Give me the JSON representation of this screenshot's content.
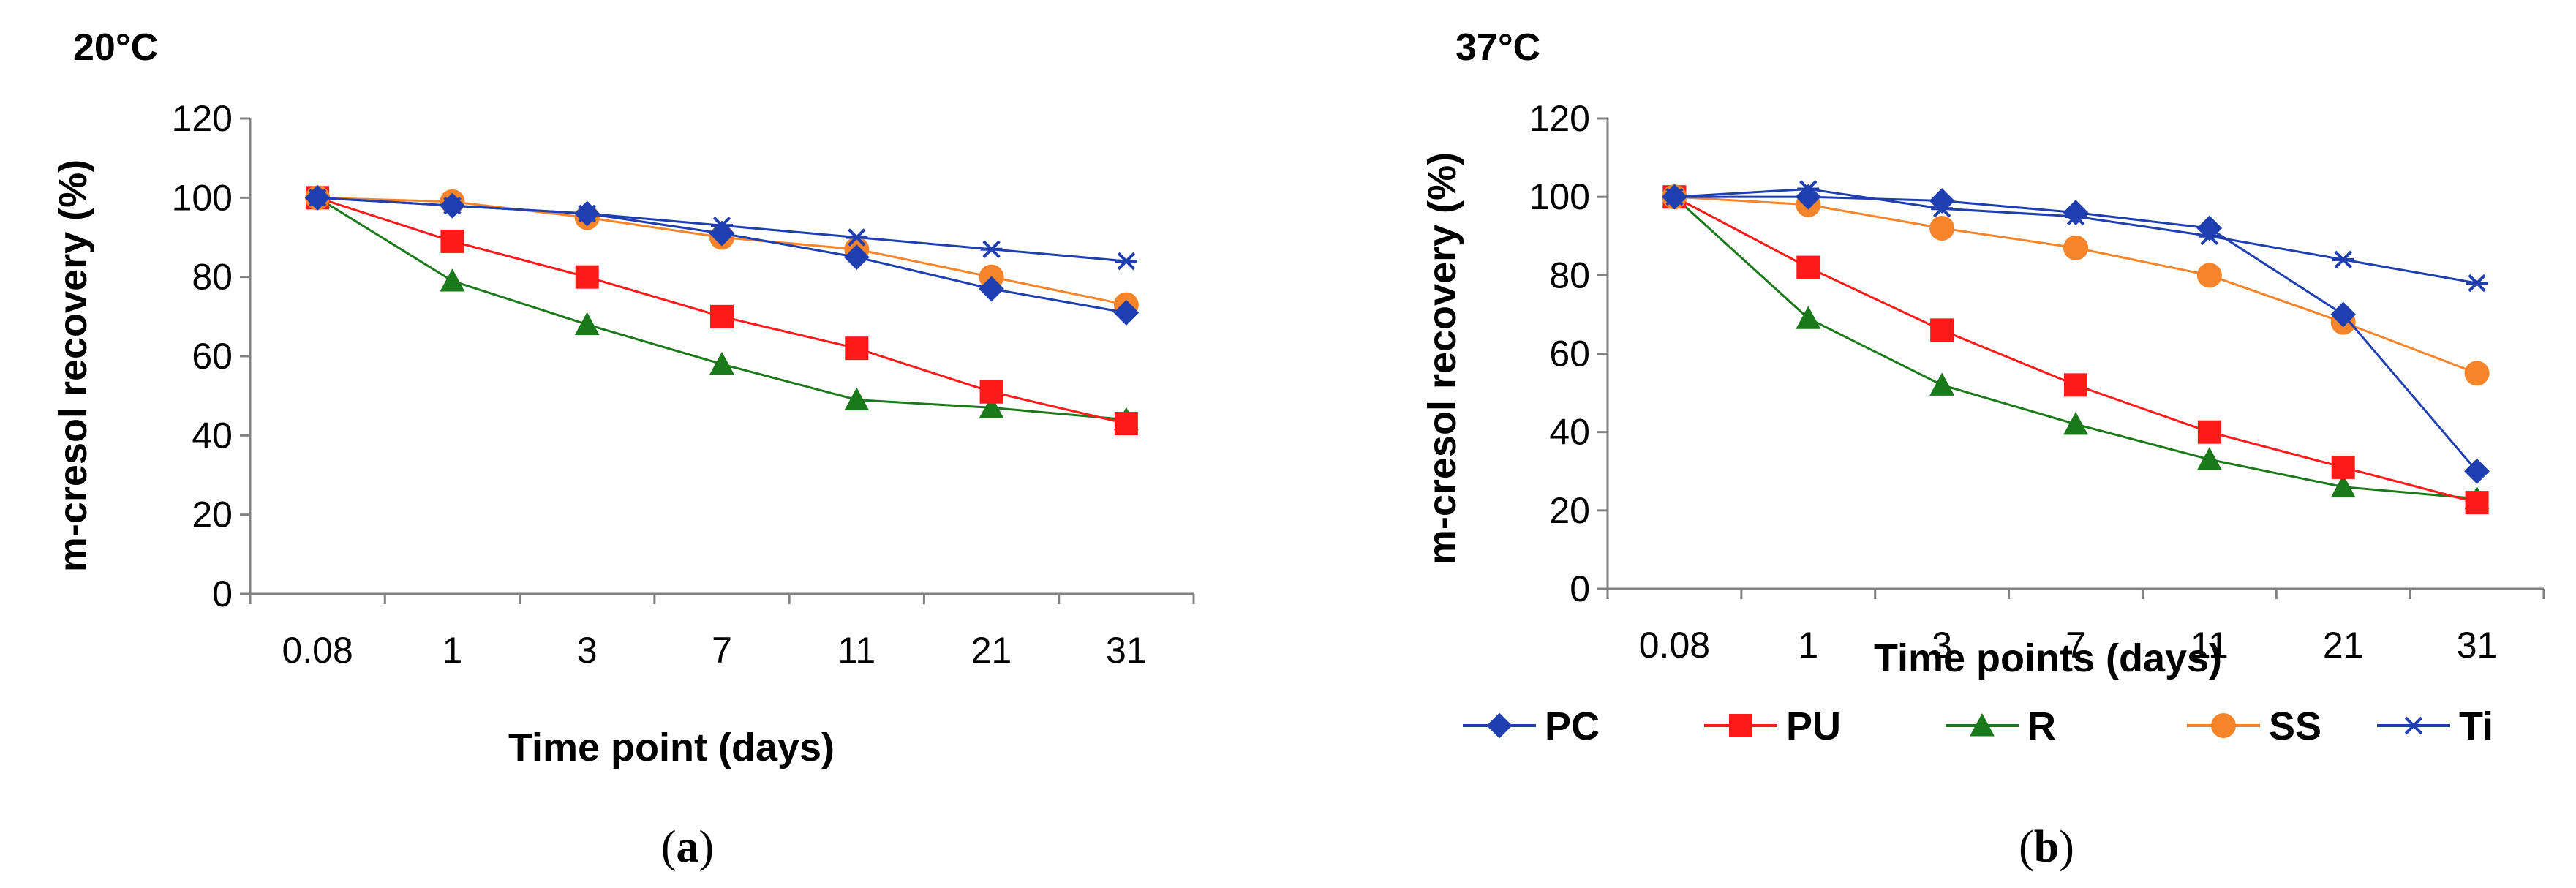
{
  "colors": {
    "PC": "#1f3fb0",
    "PU": "#ff1a1a",
    "R": "#1a7a1a",
    "SS": "#f5842a",
    "Ti": "#1f3fb0",
    "axis": "#808080"
  },
  "legend": [
    {
      "name": "PC",
      "marker": "diamond"
    },
    {
      "name": "PU",
      "marker": "square"
    },
    {
      "name": "R",
      "marker": "triangle"
    },
    {
      "name": "SS",
      "marker": "circle"
    },
    {
      "name": "Ti",
      "marker": "asterisk"
    }
  ],
  "chart_data": [
    {
      "type": "line",
      "panel_label": "20°C",
      "caption": {
        "open": "(",
        "letter": "a",
        "close": ")"
      },
      "categories": [
        "0.08",
        "1",
        "3",
        "7",
        "11",
        "21",
        "31"
      ],
      "xlabel": "Time point (days)",
      "ylabel": "m-cresol recovery (%)",
      "ylim": [
        0,
        120
      ],
      "yticks": [
        "0",
        "20",
        "40",
        "60",
        "80",
        "100",
        "120"
      ],
      "series": [
        {
          "name": "PC",
          "values": [
            100,
            98,
            96,
            91,
            85,
            77,
            71
          ]
        },
        {
          "name": "PU",
          "values": [
            100,
            89,
            80,
            70,
            62,
            51,
            43
          ]
        },
        {
          "name": "R",
          "values": [
            100,
            79,
            68,
            58,
            49,
            47,
            44
          ]
        },
        {
          "name": "SS",
          "values": [
            100,
            99,
            95,
            90,
            87,
            80,
            73
          ]
        },
        {
          "name": "Ti",
          "values": [
            100,
            98,
            96,
            93,
            90,
            87,
            84
          ]
        }
      ]
    },
    {
      "type": "line",
      "panel_label": "37°C",
      "caption": {
        "open": "(",
        "letter": "b",
        "close": ")"
      },
      "categories": [
        "0.08",
        "1",
        "3",
        "7",
        "11",
        "21",
        "31"
      ],
      "xlabel": "Time points (days)",
      "ylabel": "m-cresol recovery (%)",
      "ylim": [
        0,
        120
      ],
      "yticks": [
        "0",
        "20",
        "40",
        "60",
        "80",
        "100",
        "120"
      ],
      "series": [
        {
          "name": "PC",
          "values": [
            100,
            100,
            99,
            96,
            92,
            70,
            30
          ]
        },
        {
          "name": "PU",
          "values": [
            100,
            82,
            66,
            52,
            40,
            31,
            22
          ]
        },
        {
          "name": "R",
          "values": [
            100,
            69,
            52,
            42,
            33,
            26,
            23
          ]
        },
        {
          "name": "SS",
          "values": [
            100,
            98,
            92,
            87,
            80,
            68,
            55
          ]
        },
        {
          "name": "Ti",
          "values": [
            100,
            102,
            97,
            95,
            90,
            84,
            78
          ]
        }
      ]
    }
  ]
}
